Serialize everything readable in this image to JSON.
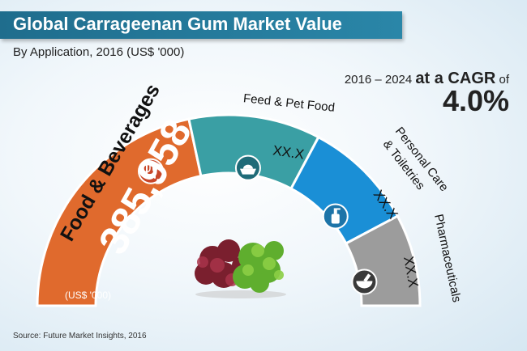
{
  "header": {
    "title": "Global Carrageenan Gum Market Value",
    "subtitle": "By Application, 2016 (US$ '000)"
  },
  "cagr": {
    "prefix": "2016 – 2024 ",
    "emphasis": "at a CAGR",
    "suffix": " of",
    "value": "4.0%"
  },
  "source": "Source: Future Market Insights, 2016",
  "colors": {
    "title_bar": "#236f90",
    "food": "#e06a2d",
    "feed": "#3a9fa4",
    "personal": "#1a8fd6",
    "pharma": "#9c9c9c",
    "icon_fill": "#ffffff"
  },
  "chart_data": {
    "type": "gauge",
    "title": "Global Carrageenan Gum Market Value",
    "subtitle": "By Application, 2016 (US$ '000)",
    "segments": [
      {
        "name": "Food & Beverages",
        "value": 385958,
        "value_label": "385,958",
        "unit_label": "(US$ '000)",
        "icon": "cutlery-icon",
        "color": "#e06a2d"
      },
      {
        "name": "Feed & Pet Food",
        "value": null,
        "value_label": "XX.X",
        "icon": "pet-bowl-icon",
        "color": "#3a9fa4"
      },
      {
        "name": "Personal Care & Toiletries",
        "name_lines": [
          "Personal Care",
          "& Toiletries"
        ],
        "value": null,
        "value_label": "XX.X",
        "icon": "lotion-bottle-icon",
        "color": "#1a8fd6"
      },
      {
        "name": "Pharmaceuticals",
        "value": null,
        "value_label": "XX.X",
        "icon": "mortar-pestle-icon",
        "color": "#9c9c9c"
      }
    ],
    "cagr": "4.0%",
    "period": "2016 – 2024"
  }
}
